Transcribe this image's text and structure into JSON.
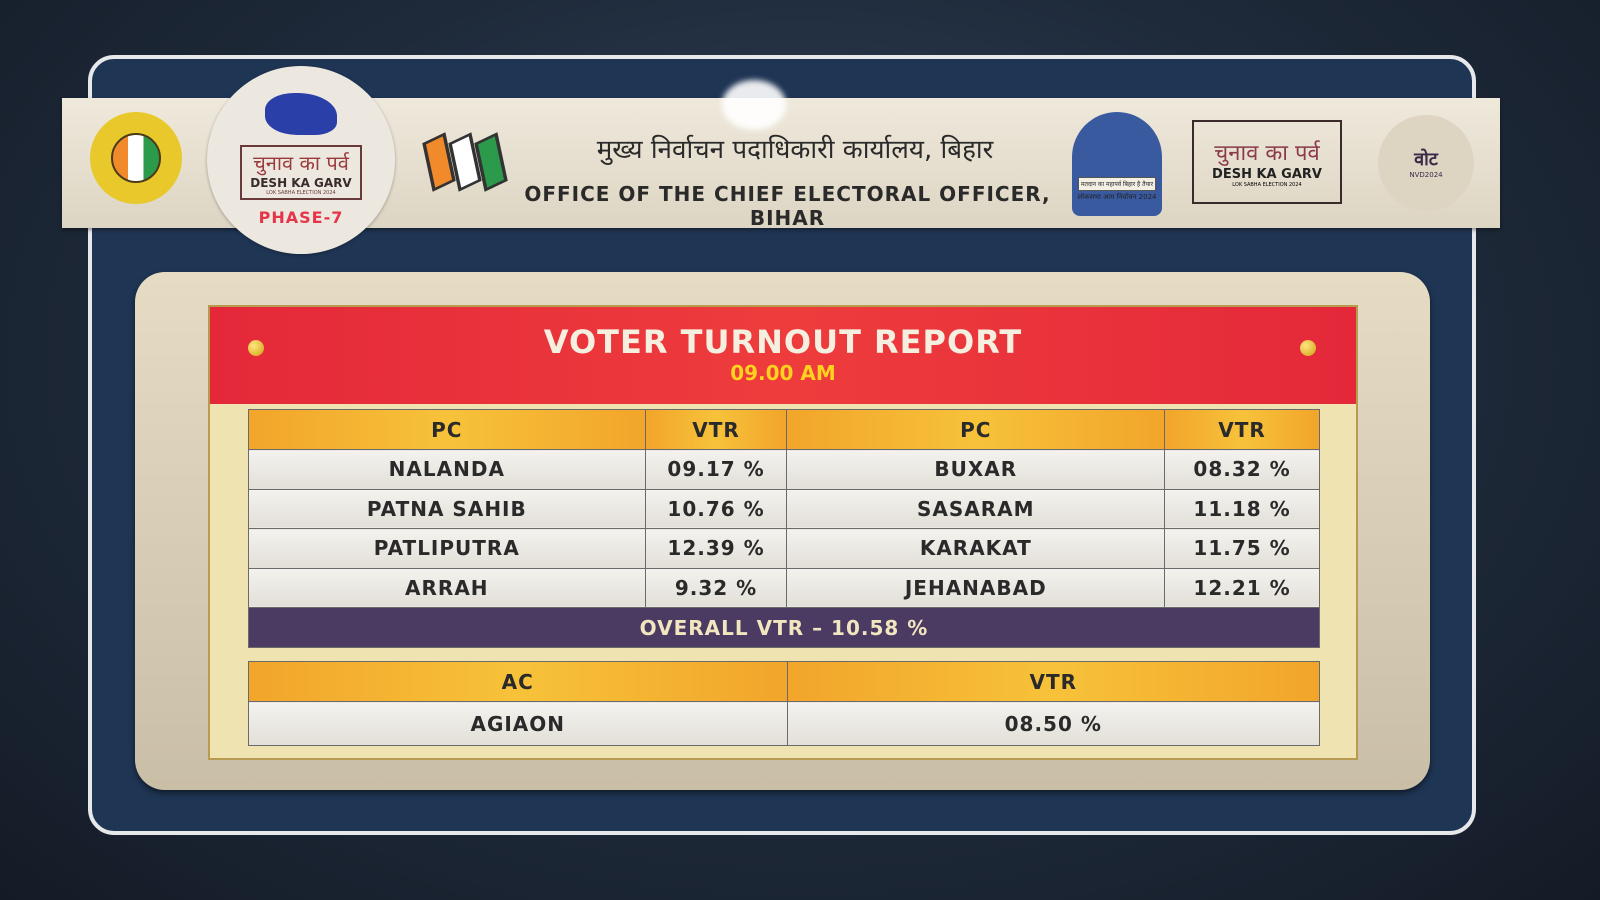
{
  "header": {
    "title_hindi": "मुख्य निर्वाचन पदाधिकारी कार्यालय, बिहार",
    "title_english": "OFFICE OF THE CHIEF ELECTORAL OFFICER, BIHAR",
    "logo_left": {
      "hindi": "चुनाव का पर्व",
      "english": "DESH KA GARV",
      "small": "LOK SABHA ELECTION 2024",
      "phase": "PHASE-7"
    },
    "logo_right": {
      "hindi": "चुनाव का पर्व",
      "english": "DESH KA GARV",
      "small": "LOK SABHA ELECTION 2024"
    },
    "svrc_tag": "मतदान का महापर्व बिहार है तैयार",
    "svrc_year": "लोकसभा आम निर्वाचन 2024",
    "vote_logo": {
      "big": "वोट",
      "small": "NVD2024"
    }
  },
  "report": {
    "title": "VOTER TURNOUT REPORT",
    "time": "09.00 AM",
    "pc_table": {
      "headers": [
        "PC",
        "VTR",
        "PC",
        "VTR"
      ],
      "rows": [
        [
          "NALANDA",
          "09.17 %",
          "BUXAR",
          "08.32 %"
        ],
        [
          "PATNA SAHIB",
          "10.76 %",
          "SASARAM",
          "11.18 %"
        ],
        [
          "PATLIPUTRA",
          "12.39 %",
          "KARAKAT",
          "11.75 %"
        ],
        [
          "ARRAH",
          "9.32 %",
          "JEHANABAD",
          "12.21 %"
        ]
      ],
      "overall": "OVERALL VTR – 10.58 %"
    },
    "ac_table": {
      "headers": [
        "AC",
        "VTR"
      ],
      "rows": [
        [
          "AGIAON",
          "08.50 %"
        ]
      ]
    }
  },
  "colors": {
    "red_band": "#e4283a",
    "header_orange": "#f7c23a",
    "overall_purple": "#4b3b62",
    "time_yellow": "#ffd21e",
    "phase_red": "#e8344a"
  }
}
